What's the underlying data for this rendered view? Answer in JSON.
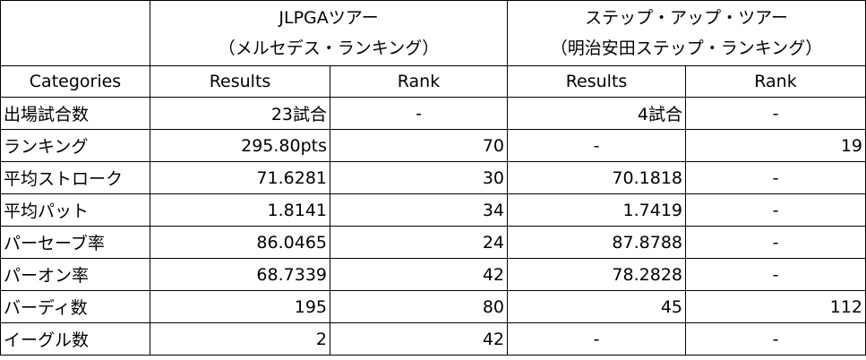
{
  "header": {
    "tour1_name": "JLPGAツアー",
    "tour1_ranking": "（メルセデス・ランキング）",
    "tour2_name": "ステップ・アップ・ツアー",
    "tour2_ranking": "（明治安田ステップ・ランキング）",
    "col_categories": "Categories",
    "col_results_1": "Results",
    "col_rank_1": "Rank",
    "col_results_2": "Results",
    "col_rank_2": "Rank"
  },
  "rows": [
    {
      "category": "出場試合数",
      "results1": "23試合",
      "rank1": "-",
      "results2": "4試合",
      "rank2": "-"
    },
    {
      "category": "ランキング",
      "results1": "295.80pts",
      "rank1": "70",
      "results2": "-",
      "rank2": "19"
    },
    {
      "category": "平均ストローク",
      "results1": "71.6281",
      "rank1": "30",
      "results2": "70.1818",
      "rank2": "-"
    },
    {
      "category": "平均パット",
      "results1": "1.8141",
      "rank1": "34",
      "results2": "1.7419",
      "rank2": "-"
    },
    {
      "category": "パーセーブ率",
      "results1": "86.0465",
      "rank1": "24",
      "results2": "87.8788",
      "rank2": "-"
    },
    {
      "category": "パーオン率",
      "results1": "68.7339",
      "rank1": "42",
      "results2": "78.2828",
      "rank2": "-"
    },
    {
      "category": "バーディ数",
      "results1": "195",
      "rank1": "80",
      "results2": "45",
      "rank2": "112"
    },
    {
      "category": "イーグル数",
      "results1": "2",
      "rank1": "42",
      "results2": "-",
      "rank2": "-"
    }
  ]
}
